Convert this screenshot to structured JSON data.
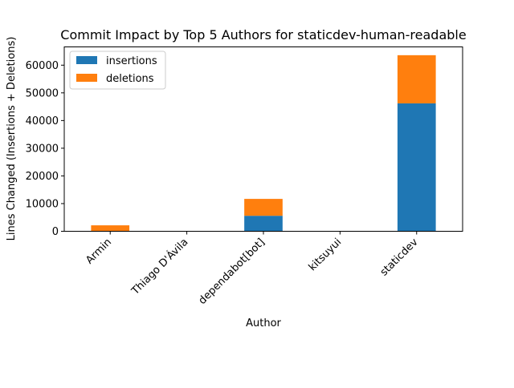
{
  "chart_data": {
    "type": "bar",
    "stacked": true,
    "title": "Commit Impact by Top 5 Authors for staticdev-human-readable",
    "xlabel": "Author",
    "ylabel": "Lines Changed (Insertions + Deletions)",
    "categories": [
      "Armin",
      "Thiago D'Ávila",
      "dependabot[bot]",
      "kitsuyui",
      "staticdev"
    ],
    "series": [
      {
        "name": "insertions",
        "color": "#1f77b4",
        "values": [
          150,
          20,
          5600,
          10,
          46200
        ]
      },
      {
        "name": "deletions",
        "color": "#ff7f0e",
        "values": [
          2000,
          10,
          6100,
          5,
          17400
        ]
      }
    ],
    "ylim": [
      0,
      66600
    ],
    "yticks": [
      0,
      10000,
      20000,
      30000,
      40000,
      50000,
      60000
    ],
    "legend_position": "top-left",
    "grid": false
  }
}
